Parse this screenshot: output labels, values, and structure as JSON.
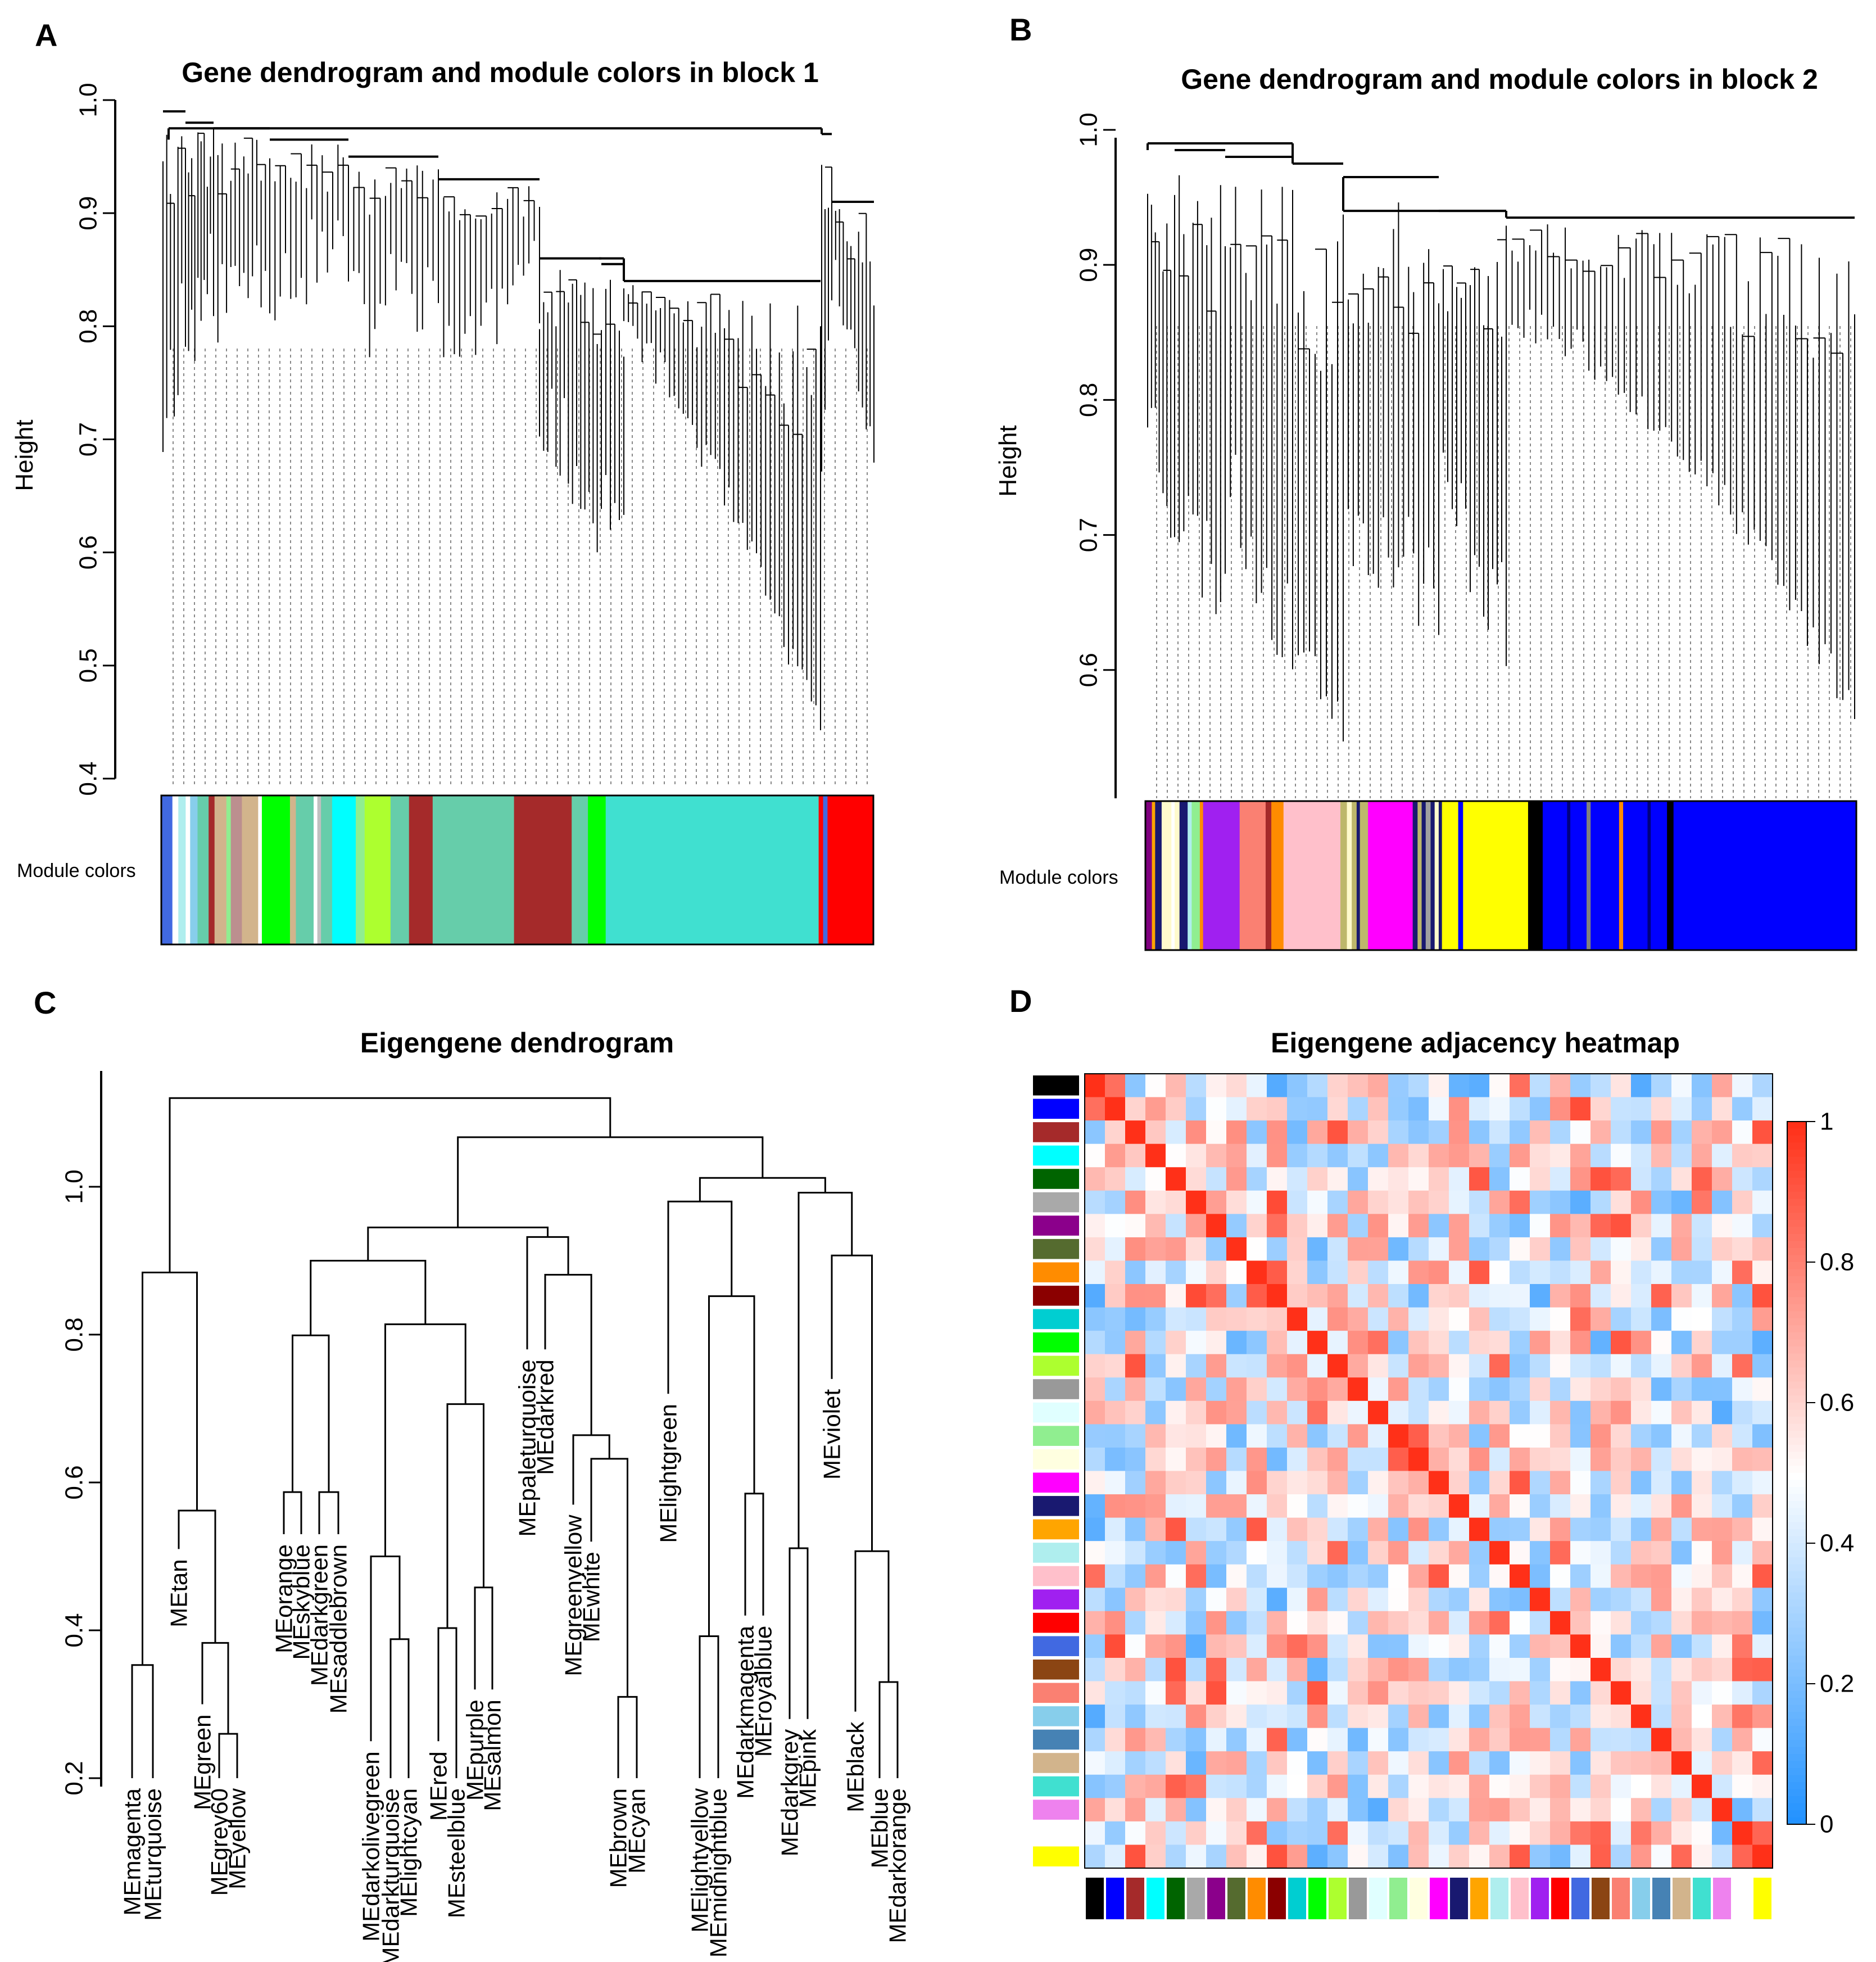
{
  "panels": {
    "A": {
      "label": "A",
      "title": "Gene dendrogram and module colors in block 1",
      "ylabel": "Height",
      "module_label": "Module colors"
    },
    "B": {
      "label": "B",
      "title": "Gene dendrogram and module colors in block 2",
      "ylabel": "Height",
      "module_label": "Module colors"
    },
    "C": {
      "label": "C",
      "title": "Eigengene dendrogram"
    },
    "D": {
      "label": "D",
      "title": "Eigengene adjacency heatmap"
    }
  },
  "chart_data": [
    {
      "id": "A",
      "type": "dendrogram",
      "title": "Gene dendrogram and module colors in block 1",
      "ylabel": "Height",
      "ylim": [
        0.4,
        1.0
      ],
      "yticks": [
        "0.4",
        "0.5",
        "0.6",
        "0.7",
        "0.8",
        "0.9",
        "1.0"
      ],
      "module_colors": [
        {
          "color": "#4169e1",
          "w": 1.5
        },
        {
          "color": "#ffffff",
          "w": 0.8
        },
        {
          "color": "#afeeee",
          "w": 1
        },
        {
          "color": "#ffffff",
          "w": 0.6
        },
        {
          "color": "#87ceeb",
          "w": 1
        },
        {
          "color": "#66cdaa",
          "w": 1.5
        },
        {
          "color": "#a52a2a",
          "w": 0.8
        },
        {
          "color": "#d2b48c",
          "w": 1.6
        },
        {
          "color": "#90ee90",
          "w": 0.6
        },
        {
          "color": "#bc8f8f",
          "w": 1.5
        },
        {
          "color": "#d2b48c",
          "w": 2.2
        },
        {
          "color": "#ffffff",
          "w": 0.5
        },
        {
          "color": "#00ff00",
          "w": 3.8
        },
        {
          "color": "#d2b48c",
          "w": 0.8
        },
        {
          "color": "#66cdaa",
          "w": 2.4
        },
        {
          "color": "#ffffff",
          "w": 0.5
        },
        {
          "color": "#c0c0c0",
          "w": 0.5
        },
        {
          "color": "#66cdaa",
          "w": 1.5
        },
        {
          "color": "#00ffff",
          "w": 3.2
        },
        {
          "color": "#90ee90",
          "w": 1.2
        },
        {
          "color": "#adff2f",
          "w": 3.5
        },
        {
          "color": "#66cdaa",
          "w": 2.5
        },
        {
          "color": "#a52a2a",
          "w": 3.2
        },
        {
          "color": "#66cdaa",
          "w": 11
        },
        {
          "color": "#a52a2a",
          "w": 7.8
        },
        {
          "color": "#66cdaa",
          "w": 2.2
        },
        {
          "color": "#00ff00",
          "w": 2.4
        },
        {
          "color": "#40e0d0",
          "w": 28.8
        },
        {
          "color": "#ff0000",
          "w": 0.6
        },
        {
          "color": "#4169e1",
          "w": 0.6
        },
        {
          "color": "#ff0000",
          "w": 6.2
        }
      ]
    },
    {
      "id": "B",
      "type": "dendrogram",
      "title": "Gene dendrogram and module colors in block 2",
      "ylabel": "Height",
      "ylim": [
        0.5,
        1.0
      ],
      "yticks": [
        "0.6",
        "0.7",
        "0.8",
        "0.9",
        "1.0"
      ],
      "module_colors": [
        {
          "color": "#800080",
          "w": 0.8
        },
        {
          "color": "#ffa500",
          "w": 0.4
        },
        {
          "color": "#191970",
          "w": 0.8
        },
        {
          "color": "#fffacd",
          "w": 1.2
        },
        {
          "color": "#ffffff",
          "w": 0.4
        },
        {
          "color": "#fffacd",
          "w": 0.6
        },
        {
          "color": "#191970",
          "w": 1
        },
        {
          "color": "#afeeee",
          "w": 0.5
        },
        {
          "color": "#90ee90",
          "w": 1
        },
        {
          "color": "#ff8c00",
          "w": 0.4
        },
        {
          "color": "#a020f0",
          "w": 4.5
        },
        {
          "color": "#fa8072",
          "w": 3.2
        },
        {
          "color": "#a52a2a",
          "w": 0.7
        },
        {
          "color": "#ff8c00",
          "w": 1.5
        },
        {
          "color": "#ffc0cb",
          "w": 7
        },
        {
          "color": "#bdb76b",
          "w": 0.8
        },
        {
          "color": "#fffacd",
          "w": 0.6
        },
        {
          "color": "#bdb76b",
          "w": 0.6
        },
        {
          "color": "#191970",
          "w": 0.4
        },
        {
          "color": "#bdb76b",
          "w": 1
        },
        {
          "color": "#ff00ff",
          "w": 5.5
        },
        {
          "color": "#191970",
          "w": 0.6
        },
        {
          "color": "#bdb76b",
          "w": 0.5
        },
        {
          "color": "#191970",
          "w": 0.5
        },
        {
          "color": "#a0a0a0",
          "w": 0.6
        },
        {
          "color": "#191970",
          "w": 0.5
        },
        {
          "color": "#fffacd",
          "w": 0.5
        },
        {
          "color": "#191970",
          "w": 0.4
        },
        {
          "color": "#ffff00",
          "w": 2
        },
        {
          "color": "#0000ff",
          "w": 0.6
        },
        {
          "color": "#ffff00",
          "w": 8
        },
        {
          "color": "#000000",
          "w": 1.8
        },
        {
          "color": "#0000ff",
          "w": 3
        },
        {
          "color": "#000080",
          "w": 0.4
        },
        {
          "color": "#0000ff",
          "w": 2
        },
        {
          "color": "#808080",
          "w": 0.5
        },
        {
          "color": "#0000ff",
          "w": 3.5
        },
        {
          "color": "#ff8c00",
          "w": 0.5
        },
        {
          "color": "#0000ff",
          "w": 3
        },
        {
          "color": "#000080",
          "w": 0.4
        },
        {
          "color": "#0000ff",
          "w": 2
        },
        {
          "color": "#000000",
          "w": 0.8
        },
        {
          "color": "#0000ff",
          "w": 22.5
        }
      ]
    },
    {
      "id": "C",
      "type": "dendrogram",
      "title": "Eigengene dendrogram",
      "ylim": [
        0.2,
        1.2
      ],
      "yticks": [
        "0.2",
        "0.4",
        "0.6",
        "0.8",
        "1.0"
      ],
      "leaves": [
        "MEmagenta",
        "MEturquoise",
        "MEtan",
        "MEgreen",
        "MEgrey60",
        "MEyellow",
        "MEorange",
        "MEskyblue",
        "MEdarkgreen",
        "MEsaddlebrown",
        "MEdarkolivegreen",
        "MEdarkturquoise",
        "MElightcyan",
        "MEred",
        "MEsteelblue",
        "MEpurple",
        "MEsalmon",
        "MEpaleturquoise",
        "MEdarkred",
        "MEgreenyellow",
        "MEwhite",
        "MEbrown",
        "MEcyan",
        "MElightgreen",
        "MElightyellow",
        "MEmidnightblue",
        "MEdarkmagenta",
        "MEroyalblue",
        "MEdarkgrey",
        "MEpink",
        "MEviolet",
        "MEblack",
        "MEblue",
        "MEdarkorange"
      ],
      "leaf_heights": [
        0.2,
        0.2,
        0.51,
        0.3,
        0.2,
        0.2,
        0.53,
        0.53,
        0.53,
        0.53,
        0.25,
        0.2,
        0.2,
        0.25,
        0.2,
        0.32,
        0.32,
        0.78,
        0.78,
        0.57,
        0.52,
        0.2,
        0.2,
        0.72,
        0.2,
        0.2,
        0.42,
        0.42,
        0.28,
        0.28,
        0.74,
        0.29,
        0.2,
        0.2
      ],
      "merges": [
        {
          "a": 0,
          "b": 1,
          "h": 0.353
        },
        {
          "a": 4,
          "b": 5,
          "h": 0.26
        },
        {
          "a": 3,
          "b": -2,
          "h": 0.383
        },
        {
          "a": 2,
          "b": -3,
          "h": 0.562
        },
        {
          "a": -1,
          "b": -4,
          "h": 0.884
        },
        {
          "a": 6,
          "b": 7,
          "h": 0.587
        },
        {
          "a": 8,
          "b": 9,
          "h": 0.587
        },
        {
          "a": -6,
          "b": -7,
          "h": 0.799
        },
        {
          "a": 11,
          "b": 12,
          "h": 0.388
        },
        {
          "a": 10,
          "b": -9,
          "h": 0.5
        },
        {
          "a": 13,
          "b": 14,
          "h": 0.403
        },
        {
          "a": 15,
          "b": 16,
          "h": 0.458
        },
        {
          "a": -11,
          "b": -12,
          "h": 0.706
        },
        {
          "a": -10,
          "b": -13,
          "h": 0.814
        },
        {
          "a": -8,
          "b": -14,
          "h": 0.9
        },
        {
          "a": 21,
          "b": 22,
          "h": 0.31
        },
        {
          "a": 20,
          "b": -16,
          "h": 0.632
        },
        {
          "a": 19,
          "b": -17,
          "h": 0.664
        },
        {
          "a": 18,
          "b": -18,
          "h": 0.881
        },
        {
          "a": 17,
          "b": -19,
          "h": 0.932
        },
        {
          "a": -15,
          "b": -20,
          "h": 0.945
        },
        {
          "a": 24,
          "b": 25,
          "h": 0.392
        },
        {
          "a": 26,
          "b": 27,
          "h": 0.585
        },
        {
          "a": -22,
          "b": -23,
          "h": 0.852
        },
        {
          "a": 23,
          "b": -24,
          "h": 0.98
        },
        {
          "a": 28,
          "b": 29,
          "h": 0.511
        },
        {
          "a": 32,
          "b": 33,
          "h": 0.33
        },
        {
          "a": 31,
          "b": -27,
          "h": 0.507
        },
        {
          "a": 30,
          "b": -28,
          "h": 0.907
        },
        {
          "a": -26,
          "b": -29,
          "h": 0.992
        },
        {
          "a": -25,
          "b": -30,
          "h": 1.012
        },
        {
          "a": -21,
          "b": -31,
          "h": 1.067
        },
        {
          "a": -5,
          "b": -32,
          "h": 1.12
        }
      ]
    },
    {
      "id": "D",
      "type": "heatmap",
      "title": "Eigengene adjacency heatmap",
      "colorbar_ticks": [
        "0",
        "0.2",
        "0.4",
        "0.6",
        "0.8",
        "1"
      ],
      "colorbar_range": [
        0,
        1
      ],
      "row_colors": [
        "#000000",
        "#0000ff",
        "#a52a2a",
        "#00ffff",
        "#006400",
        "#a9a9a9",
        "#8b008b",
        "#556b2f",
        "#ff8c00",
        "#8b0000",
        "#00ced1",
        "#00ff00",
        "#adff2f",
        "#999999",
        "#e0ffff",
        "#90ee90",
        "#ffffe0",
        "#ff00ff",
        "#191970",
        "#ffa500",
        "#afeeee",
        "#ffc0cb",
        "#a020f0",
        "#ff0000",
        "#4169e1",
        "#8b4513",
        "#fa8072",
        "#87ceeb",
        "#4682b4",
        "#d2b48c",
        "#40e0d0",
        "#ee82ee",
        "#ffffff",
        "#ffff00"
      ],
      "col_colors": [
        "#000000",
        "#0000ff",
        "#a52a2a",
        "#00ffff",
        "#006400",
        "#a9a9a9",
        "#8b008b",
        "#556b2f",
        "#ff8c00",
        "#8b0000",
        "#00ced1",
        "#00ff00",
        "#adff2f",
        "#999999",
        "#e0ffff",
        "#90ee90",
        "#ffffe0",
        "#ff00ff",
        "#191970",
        "#ffa500",
        "#afeeee",
        "#ffc0cb",
        "#a020f0",
        "#ff0000",
        "#4169e1",
        "#8b4513",
        "#fa8072",
        "#87ceeb",
        "#4682b4",
        "#d2b48c",
        "#40e0d0",
        "#ee82ee",
        "#ffffff",
        "#ffff00"
      ],
      "n": 34,
      "diagonal": 1,
      "note": "symmetric eigengene adjacency matrix; off-diagonal values mostly 0.2-0.8"
    }
  ]
}
